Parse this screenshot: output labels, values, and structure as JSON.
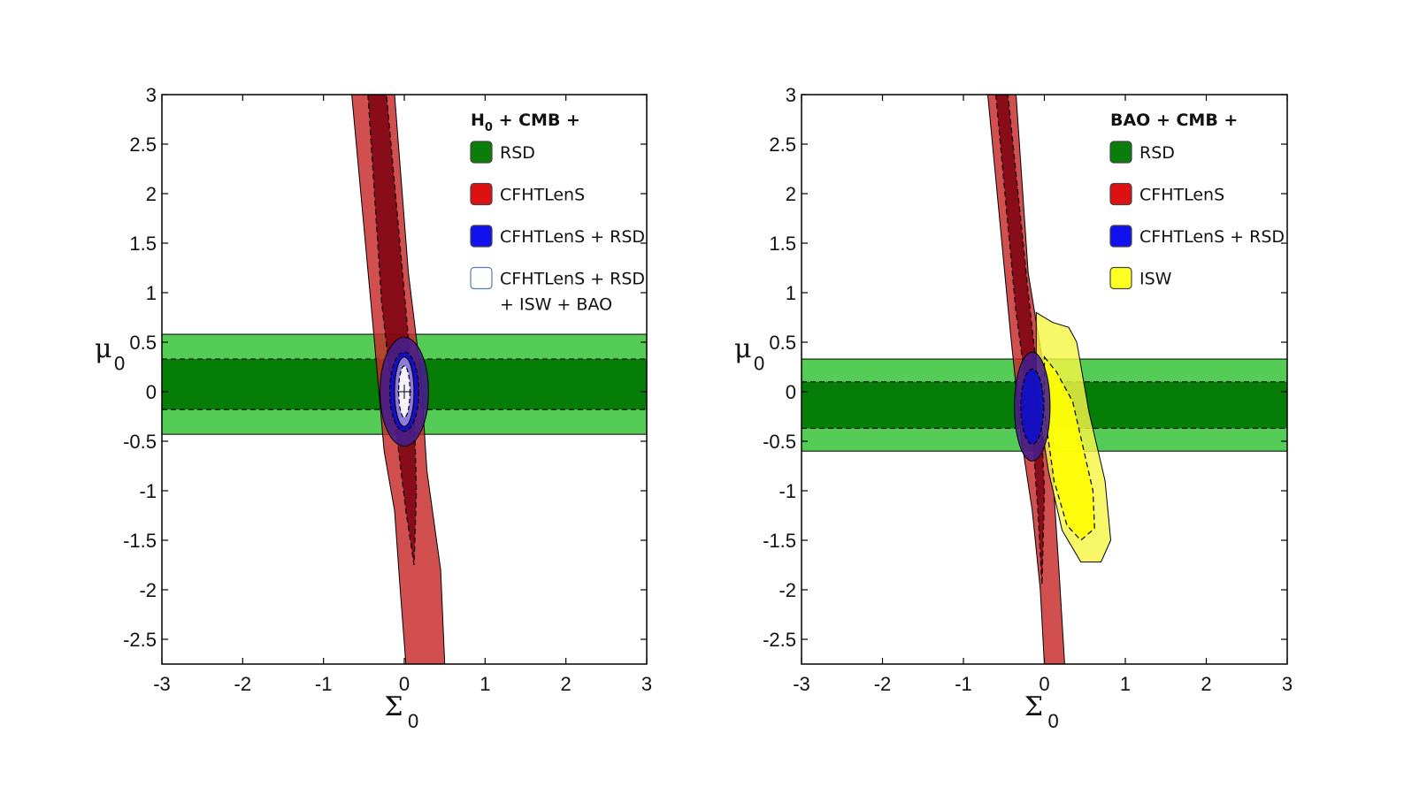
{
  "chart_data": [
    {
      "type": "contour",
      "xlabel": "Σ",
      "xlabel_sub": "0",
      "ylabel": "μ",
      "ylabel_sub": "0",
      "xlim": [
        -3,
        3
      ],
      "ylim": [
        -2.75,
        3
      ],
      "xticks": [
        "-3",
        "-2",
        "-1",
        "0",
        "1",
        "2",
        "3"
      ],
      "yticks": [
        "3",
        "2.5",
        "2",
        "1.5",
        "1",
        "0.5",
        "0",
        "-0.5",
        "-1",
        "-1.5",
        "-2",
        "-2.5"
      ],
      "legend_title": "H",
      "legend_title_sub": "0",
      "legend_title_rest": " + CMB +",
      "legend": [
        {
          "label": "RSD",
          "color": "#0a7d0a"
        },
        {
          "label": "CFHTLenS",
          "color": "#dd1111"
        },
        {
          "label": "CFHTLenS + RSD",
          "color": "#1111ee"
        },
        {
          "label": "CFHTLenS + RSD",
          "label2": "+ ISW + BAO",
          "color": "#ffffff"
        }
      ],
      "rsd_band": {
        "outer": [
          -0.43,
          0.58
        ],
        "inner": [
          -0.18,
          0.33
        ]
      },
      "lensing_band": {
        "outer_left": [
          [
            -0.65,
            3.0
          ],
          [
            -0.38,
            0.6
          ],
          [
            -0.25,
            -0.6
          ],
          [
            -0.12,
            -1.2
          ],
          [
            -0.05,
            -2.0
          ],
          [
            0.02,
            -2.75
          ]
        ],
        "outer_right": [
          [
            0.5,
            -2.75
          ],
          [
            0.45,
            -1.8
          ],
          [
            0.28,
            -0.8
          ],
          [
            0.2,
            0.2
          ],
          [
            0.05,
            1.2
          ],
          [
            -0.12,
            3.0
          ]
        ],
        "inner_left": [
          [
            -0.45,
            3.0
          ],
          [
            -0.28,
            0.9
          ],
          [
            -0.1,
            -0.4
          ],
          [
            0.02,
            -1.2
          ],
          [
            0.12,
            -1.75
          ]
        ],
        "inner_right": [
          [
            0.12,
            -1.75
          ],
          [
            0.15,
            -1.0
          ],
          [
            0.12,
            -0.1
          ],
          [
            0.0,
            1.0
          ],
          [
            -0.22,
            3.0
          ]
        ]
      },
      "combined": {
        "center": [
          0.0,
          0.0
        ],
        "outer": [
          0.3,
          0.55
        ],
        "inner": [
          0.18,
          0.4
        ]
      },
      "joint": {
        "center": [
          0.0,
          0.0
        ],
        "outer": [
          0.12,
          0.35
        ],
        "inner": [
          0.07,
          0.26
        ]
      },
      "marker": [
        0.0,
        0.0
      ]
    },
    {
      "type": "contour",
      "xlabel": "Σ",
      "xlabel_sub": "0",
      "ylabel": "μ",
      "ylabel_sub": "0",
      "xlim": [
        -3,
        3
      ],
      "ylim": [
        -2.75,
        3
      ],
      "xticks": [
        "-3",
        "-2",
        "-1",
        "0",
        "1",
        "2",
        "3"
      ],
      "yticks": [
        "3",
        "2.5",
        "2",
        "1.5",
        "1",
        "0.5",
        "0",
        "-0.5",
        "-1",
        "-1.5",
        "-2",
        "-2.5"
      ],
      "legend_title": "BAO + CMB +",
      "legend": [
        {
          "label": "RSD",
          "color": "#0a7d0a"
        },
        {
          "label": "CFHTLenS",
          "color": "#dd1111"
        },
        {
          "label": "CFHTLenS + RSD",
          "color": "#1111ee"
        },
        {
          "label": "ISW",
          "color": "#ffff22"
        }
      ],
      "rsd_band": {
        "outer": [
          -0.6,
          0.33
        ],
        "inner": [
          -0.37,
          0.1
        ]
      },
      "lensing_band": {
        "outer_left": [
          [
            -0.7,
            3.0
          ],
          [
            -0.42,
            0.6
          ],
          [
            -0.28,
            -0.5
          ],
          [
            -0.15,
            -1.2
          ],
          [
            -0.05,
            -2.0
          ],
          [
            0.0,
            -2.75
          ]
        ],
        "outer_right": [
          [
            0.25,
            -2.75
          ],
          [
            0.18,
            -1.8
          ],
          [
            0.1,
            -0.8
          ],
          [
            0.0,
            0.2
          ],
          [
            -0.2,
            1.2
          ],
          [
            -0.35,
            3.0
          ]
        ],
        "inner_left": [
          [
            -0.6,
            3.0
          ],
          [
            -0.35,
            0.8
          ],
          [
            -0.15,
            -0.4
          ],
          [
            -0.08,
            -1.2
          ],
          [
            -0.03,
            -1.95
          ]
        ],
        "inner_right": [
          [
            -0.03,
            -1.95
          ],
          [
            0.0,
            -1.0
          ],
          [
            -0.05,
            -0.1
          ],
          [
            -0.2,
            1.0
          ],
          [
            -0.45,
            3.0
          ]
        ]
      },
      "combined": {
        "center": [
          -0.15,
          -0.15
        ],
        "outer": [
          0.22,
          0.55
        ],
        "inner": [
          0.14,
          0.38
        ]
      },
      "isw": {
        "outer": [
          [
            -0.1,
            0.8
          ],
          [
            0.1,
            0.7
          ],
          [
            0.3,
            0.65
          ],
          [
            0.4,
            0.5
          ],
          [
            0.55,
            -0.2
          ],
          [
            0.75,
            -0.9
          ],
          [
            0.82,
            -1.5
          ],
          [
            0.7,
            -1.72
          ],
          [
            0.45,
            -1.72
          ],
          [
            0.22,
            -1.4
          ],
          [
            0.05,
            -0.8
          ],
          [
            -0.1,
            0.0
          ]
        ],
        "inner": [
          [
            0.0,
            0.35
          ],
          [
            0.15,
            0.2
          ],
          [
            0.35,
            -0.1
          ],
          [
            0.6,
            -1.0
          ],
          [
            0.62,
            -1.38
          ],
          [
            0.45,
            -1.5
          ],
          [
            0.28,
            -1.35
          ],
          [
            0.12,
            -0.9
          ],
          [
            0.0,
            -0.2
          ]
        ]
      }
    }
  ]
}
